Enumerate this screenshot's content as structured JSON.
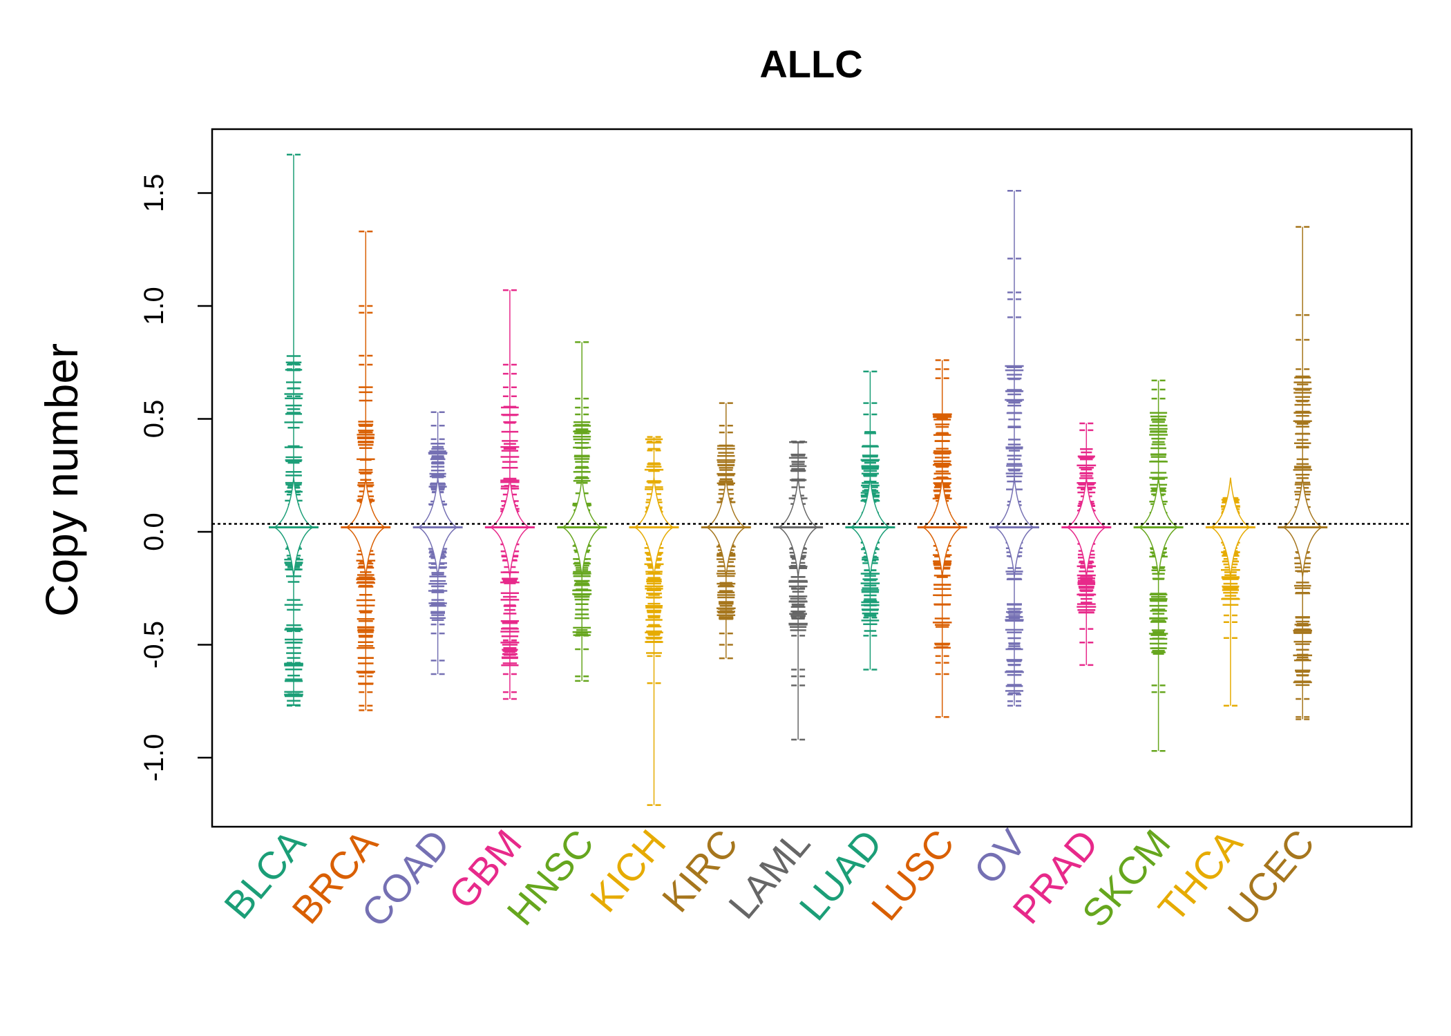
{
  "chart_data": {
    "type": "scatter",
    "title": "ALLC",
    "ylabel": "Copy number",
    "xlabel": "",
    "ylim": [
      -1.3,
      1.78
    ],
    "yticks": [
      -1.0,
      -0.5,
      0.0,
      0.5,
      1.0,
      1.5
    ],
    "ytick_labels": [
      "-1.0",
      "-0.5",
      "0.0",
      "0.5",
      "1.0",
      "1.5"
    ],
    "reference_line": 0.035,
    "grid": false,
    "legend": "none",
    "categories": [
      "BLCA",
      "BRCA",
      "COAD",
      "GBM",
      "HNSC",
      "KICH",
      "KIRC",
      "LAML",
      "LUAD",
      "LUSC",
      "OV",
      "PRAD",
      "SKCM",
      "THCA",
      "UCEC"
    ],
    "series": [
      {
        "label": "BLCA",
        "color": "#1B9E77",
        "min": -0.77,
        "max": 1.67,
        "outliers": [
          1.67,
          0.74,
          0.72,
          0.6,
          -0.44,
          -0.58,
          -0.71,
          -0.77
        ]
      },
      {
        "label": "BRCA",
        "color": "#D95F02",
        "min": -0.79,
        "max": 1.33,
        "outliers": [
          1.33,
          1.0,
          0.97,
          0.78,
          0.74,
          -0.64,
          -0.71,
          -0.77,
          -0.79
        ]
      },
      {
        "label": "COAD",
        "color": "#7570B3",
        "min": -0.63,
        "max": 0.53,
        "outliers": [
          0.53,
          0.47,
          0.41,
          -0.41,
          -0.45,
          -0.57,
          -0.63
        ]
      },
      {
        "label": "GBM",
        "color": "#E7298A",
        "min": -0.74,
        "max": 1.07,
        "outliers": [
          1.07,
          0.74,
          0.7,
          0.64,
          0.6,
          -0.4,
          -0.48,
          -0.54,
          -0.63,
          -0.71,
          -0.74
        ]
      },
      {
        "label": "HNSC",
        "color": "#66A61E",
        "min": -0.66,
        "max": 0.84,
        "outliers": [
          0.84,
          0.59,
          0.55,
          0.52,
          -0.46,
          -0.52,
          -0.64,
          -0.66
        ]
      },
      {
        "label": "KICH",
        "color": "#E6AB02",
        "min": -1.21,
        "max": 0.42,
        "outliers": [
          0.42,
          0.4,
          0.36,
          0.3,
          0.1,
          0.07,
          -0.15,
          -0.25,
          -0.55,
          -0.67,
          -1.21
        ]
      },
      {
        "label": "KIRC",
        "color": "#A6761D",
        "min": -0.56,
        "max": 0.57,
        "outliers": [
          0.57,
          0.47,
          0.44,
          -0.37,
          -0.45,
          -0.5,
          -0.56
        ]
      },
      {
        "label": "LAML",
        "color": "#666666",
        "min": -0.92,
        "max": 0.4,
        "outliers": [
          0.4,
          0.4,
          -0.2,
          -0.25,
          -0.31,
          -0.38,
          -0.46,
          -0.61,
          -0.64,
          -0.68,
          -0.92
        ]
      },
      {
        "label": "LUAD",
        "color": "#1B9E77",
        "min": -0.61,
        "max": 0.71,
        "outliers": [
          0.71,
          0.57,
          0.52,
          -0.38,
          -0.46,
          -0.61
        ]
      },
      {
        "label": "LUSC",
        "color": "#D95F02",
        "min": -0.82,
        "max": 0.76,
        "outliers": [
          0.76,
          0.72,
          0.68,
          -0.55,
          -0.58,
          -0.63,
          -0.82
        ]
      },
      {
        "label": "OV",
        "color": "#7570B3",
        "min": -0.77,
        "max": 1.51,
        "outliers": [
          1.51,
          1.21,
          1.06,
          1.03,
          0.95,
          -0.72,
          -0.75,
          -0.77
        ]
      },
      {
        "label": "PRAD",
        "color": "#E7298A",
        "min": -0.59,
        "max": 0.48,
        "outliers": [
          0.48,
          0.45,
          -0.26,
          -0.43,
          -0.49,
          -0.59
        ]
      },
      {
        "label": "SKCM",
        "color": "#66A61E",
        "min": -0.97,
        "max": 0.67,
        "outliers": [
          0.67,
          0.63,
          0.59,
          -0.68,
          -0.71,
          -0.97
        ]
      },
      {
        "label": "THCA",
        "color": "#E6AB02",
        "min": -0.77,
        "max": 0.15,
        "outliers": [
          0.15,
          -0.37,
          -0.4,
          -0.47,
          -0.77
        ]
      },
      {
        "label": "UCEC",
        "color": "#A6761D",
        "min": -0.83,
        "max": 1.35,
        "outliers": [
          1.35,
          0.96,
          0.85,
          0.72,
          -0.62,
          -0.74,
          -0.82,
          -0.83
        ]
      }
    ]
  }
}
